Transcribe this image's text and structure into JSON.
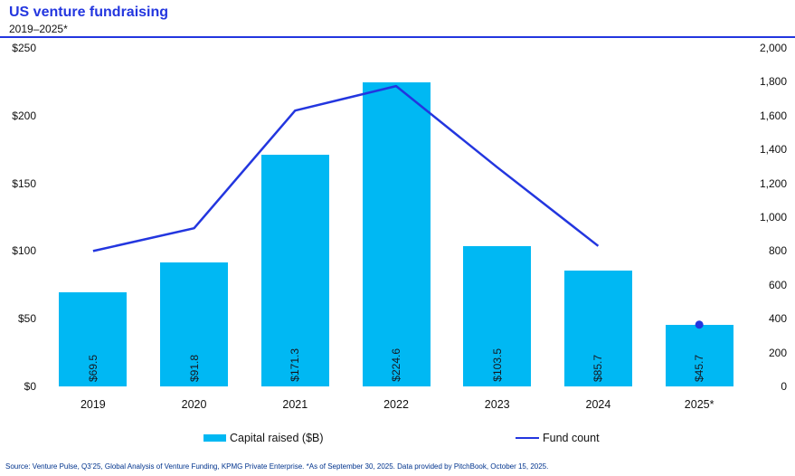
{
  "header": {
    "title": "US venture fundraising",
    "subtitle": "2019–2025*"
  },
  "colors": {
    "accent_blue": "#2336DF",
    "bar_cyan": "#00B8F3",
    "label_dark": "#16161e",
    "footer_navy": "#00338D"
  },
  "chart_data": {
    "type": "bar",
    "combo": "bar+line",
    "categories": [
      "2019",
      "2020",
      "2021",
      "2022",
      "2023",
      "2024",
      "2025*"
    ],
    "series": [
      {
        "name": "Capital raised ($B)",
        "type": "bar",
        "axis": "left",
        "values": [
          69.5,
          91.8,
          171.3,
          224.6,
          103.5,
          85.7,
          45.7
        ],
        "value_labels": [
          "$69.5",
          "$91.8",
          "$171.3",
          "$224.6",
          "$103.5",
          "$85.7",
          "$45.7"
        ]
      },
      {
        "name": "Fund count",
        "type": "line",
        "axis": "right",
        "values": [
          800,
          935,
          1630,
          1775,
          1295,
          830,
          365
        ],
        "note": "last point drawn as isolated dot, line stops at 2024"
      }
    ],
    "left_axis": {
      "min": 0,
      "max": 250,
      "ticks": [
        "$250",
        "$200",
        "$150",
        "$100",
        "$50",
        "$0"
      ]
    },
    "right_axis": {
      "min": 0,
      "max": 2000,
      "ticks": [
        "2,000",
        "1,800",
        "1,600",
        "1,400",
        "1,200",
        "1,000",
        "800",
        "600",
        "400",
        "200",
        "0"
      ]
    },
    "grid": false,
    "legend_position": "bottom"
  },
  "legend": {
    "bar_label": "Capital raised ($B)",
    "line_label": "Fund count"
  },
  "footer": {
    "source": "Source: Venture Pulse, Q3’25, Global Analysis of Venture Funding, KPMG Private Enterprise. *As of September 30, 2025. Data provided by PitchBook, October 15, 2025."
  }
}
